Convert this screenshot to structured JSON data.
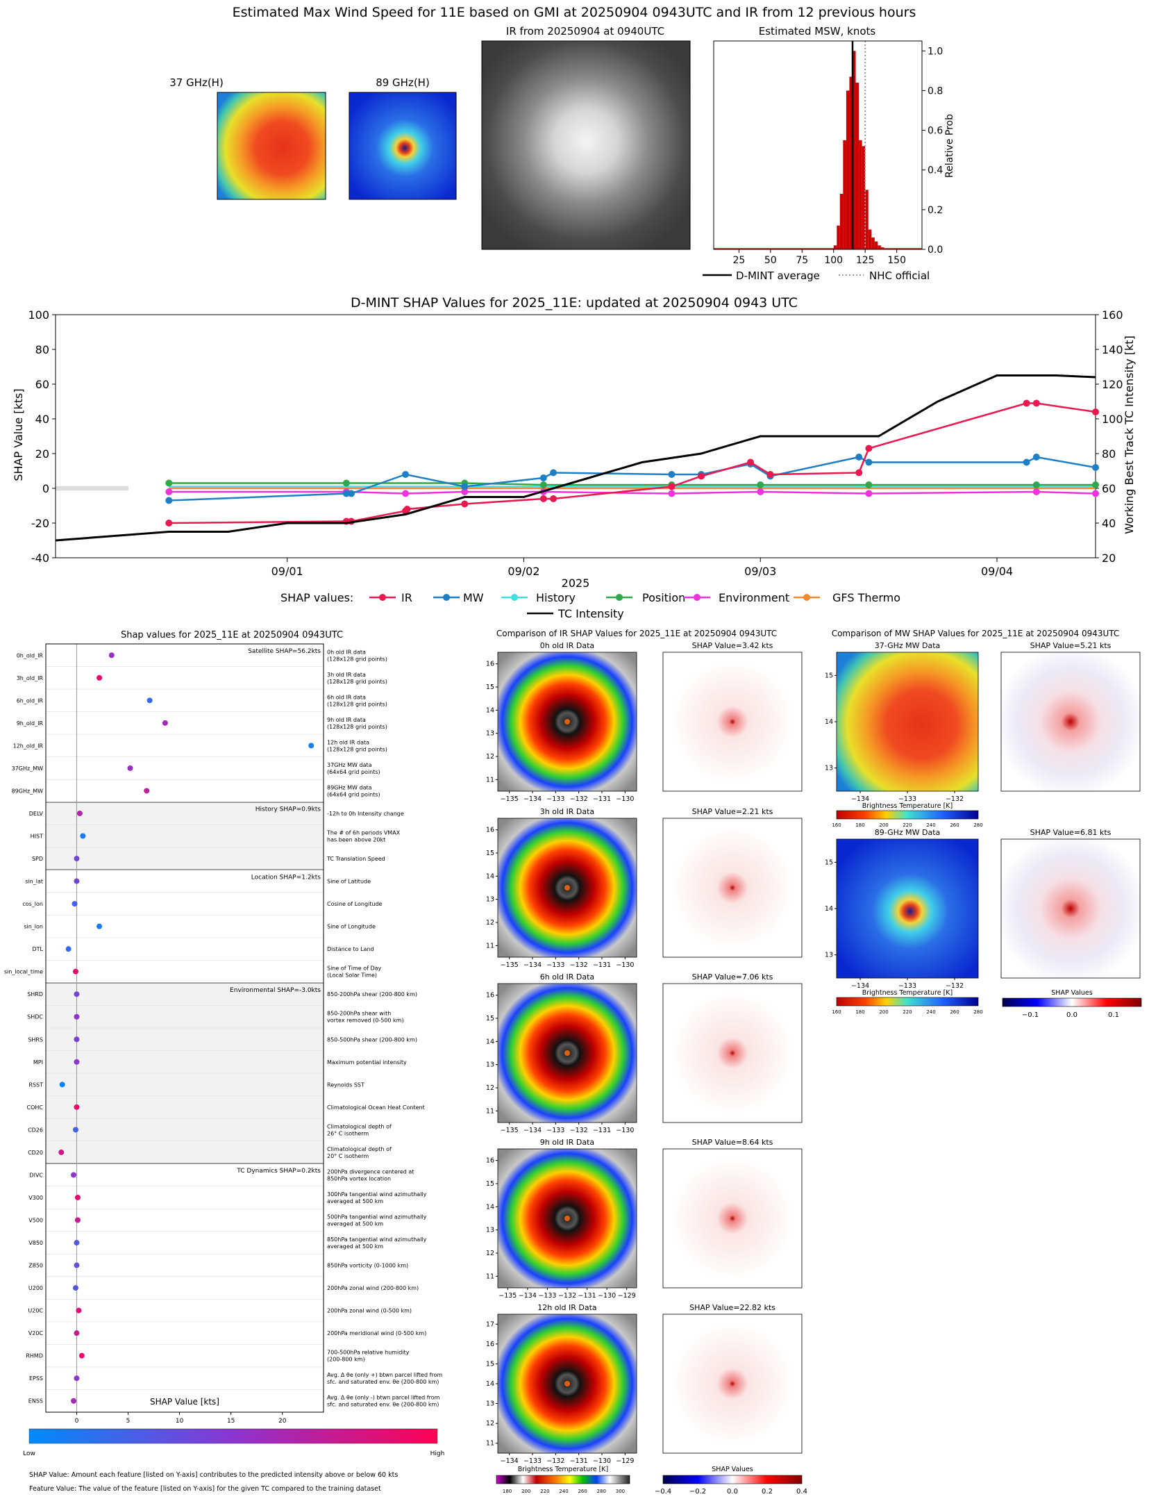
{
  "main_title": "Estimated Max Wind Speed for 11E based on GMI at 20250904 0943UTC and IR from 12 previous hours",
  "top": {
    "mw37_title": "37 GHz(H)",
    "mw89_title": "89 GHz(H)",
    "ir_title": "IR from 20250904 at 0940UTC",
    "msw_title": "Estimated MSW, knots",
    "msw_ylabel": "Relative Prob",
    "legend_dmint": "D-MINT average",
    "legend_nhc": "NHC official"
  },
  "shap_ts": {
    "title": "D-MINT SHAP Values for 2025_11E: updated at 20250904 0943 UTC",
    "ylabel_left": "SHAP Value [kts]",
    "ylabel_right": "Working Best Track TC Intensity [kt]",
    "xlabel": "2025",
    "legend_prefix": "SHAP values:",
    "legend_tc": "TC Intensity"
  },
  "feat": {
    "title": "Shap values for 2025_11E at 20250904 0943UTC",
    "xlabel": "SHAP Value [kts]",
    "cbar_low": "Low",
    "cbar_high": "High",
    "footnote1": "SHAP Value: Amount each feature [listed on Y-axis] contributes to the predicted intensity above or below 60 kts",
    "footnote2": "Feature Value: The value of the feature [listed on Y-axis] for the given TC compared to the training dataset"
  },
  "ir_cmp": {
    "title": "Comparison of IR SHAP Values for 2025_11E at 20250904 0943UTC",
    "panels": [
      {
        "ir": "0h old IR Data",
        "shap": "SHAP Value=3.42 kts"
      },
      {
        "ir": "3h old IR Data",
        "shap": "SHAP Value=2.21 kts"
      },
      {
        "ir": "6h old IR Data",
        "shap": "SHAP Value=7.06 kts"
      },
      {
        "ir": "9h old IR Data",
        "shap": "SHAP Value=8.64 kts"
      },
      {
        "ir": "12h old IR Data",
        "shap": "SHAP Value=22.82 kts"
      }
    ],
    "cbar_bt_label": "Brightness Temperature [K]",
    "cbar_shap_label": "SHAP Values"
  },
  "mw_cmp": {
    "title": "Comparison of MW SHAP Values for 2025_11E at 20250904 0943UTC",
    "panels": [
      {
        "mw": "37-GHz MW Data",
        "shap": "SHAP Value=5.21 kts"
      },
      {
        "mw": "89-GHz MW Data",
        "shap": "SHAP Value=6.81 kts"
      }
    ],
    "cbar_bt_label": "Brightness Temperature [K]",
    "cbar_shap_label": "SHAP Values"
  },
  "colors": {
    "ir": "#e8194f",
    "mw": "#1f7fc4",
    "history": "#3ee0e0",
    "position": "#2ea84a",
    "environment": "#ee33dd",
    "gfs": "#ef8a2e",
    "tc": "#000000",
    "hist_bar": "#cc0000"
  },
  "chart_data": [
    {
      "type": "bar",
      "title": "Estimated MSW, knots",
      "ylabel": "Relative Prob",
      "xlim": [
        5,
        170
      ],
      "ylim": [
        0,
        1.05
      ],
      "xticks": [
        25,
        50,
        75,
        100,
        125,
        150
      ],
      "yticks": [
        0.0,
        0.2,
        0.4,
        0.6,
        0.8,
        1.0
      ],
      "bin_width": 2.5,
      "bins": [
        100,
        102.5,
        105,
        107.5,
        110,
        112.5,
        115,
        117.5,
        120,
        122.5,
        125,
        127.5,
        130,
        132.5,
        135,
        137.5
      ],
      "values": [
        0.02,
        0.12,
        0.28,
        0.55,
        0.8,
        0.87,
        1.0,
        0.84,
        0.55,
        0.52,
        0.3,
        0.1,
        0.06,
        0.04,
        0.02,
        0.01
      ],
      "vlines": [
        {
          "name": "D-MINT average",
          "x": 115,
          "style": "solid"
        },
        {
          "name": "NHC official",
          "x": 125,
          "style": "dotted"
        }
      ]
    },
    {
      "type": "line",
      "title": "D-MINT SHAP Values for 2025_11E: updated at 20250904 0943 UTC",
      "xlabel": "2025",
      "ylabel": "SHAP Value [kts]",
      "y2label": "Working Best Track TC Intensity [kt]",
      "ylim": [
        -40,
        100
      ],
      "y2lim": [
        20,
        160
      ],
      "xlim_days": [
        "08/31 00:30",
        "09/04 10:00"
      ],
      "xticks": [
        "09/01",
        "09/02",
        "09/03",
        "09/04"
      ],
      "yticks": [
        -40,
        -20,
        0,
        20,
        40,
        60,
        80,
        100
      ],
      "y2ticks": [
        20,
        40,
        60,
        80,
        100,
        120,
        140,
        160
      ],
      "series": [
        {
          "name": "IR",
          "x": [
            "08/31 12:00",
            "09/01 06:00",
            "09/01 06:30",
            "09/01 12:00",
            "09/01 12:10",
            "09/01 18:00",
            "09/02 02:00",
            "09/02 03:00",
            "09/02 15:00",
            "09/02 18:00",
            "09/02 23:00",
            "09/03 01:00",
            "09/03 10:00",
            "09/03 11:00",
            "09/04 03:00",
            "09/04 04:00",
            "09/04 10:00"
          ],
          "y": [
            -20,
            -19,
            -19,
            -13,
            -12,
            -9,
            -6,
            -6,
            1,
            7,
            15,
            8,
            9,
            23,
            49,
            49,
            44
          ]
        },
        {
          "name": "MW",
          "x": [
            "08/31 12:00",
            "09/01 06:00",
            "09/01 06:30",
            "09/01 12:00",
            "09/01 18:00",
            "09/02 02:00",
            "09/02 03:00",
            "09/02 15:00",
            "09/02 18:00",
            "09/02 23:00",
            "09/03 01:00",
            "09/03 10:00",
            "09/03 11:00",
            "09/04 03:00",
            "09/04 04:00",
            "09/04 10:00"
          ],
          "y": [
            -7,
            -3,
            -3,
            8,
            1,
            6,
            9,
            8,
            8,
            14,
            7,
            18,
            15,
            15,
            18,
            12
          ]
        },
        {
          "name": "History",
          "x": [
            "08/31 12:00",
            "09/04 10:00"
          ],
          "y": [
            1,
            1
          ]
        },
        {
          "name": "Position",
          "x": [
            "08/31 12:00",
            "09/01 06:00",
            "09/01 18:00",
            "09/02 02:00",
            "09/02 15:00",
            "09/03 00:00",
            "09/03 11:00",
            "09/04 04:00",
            "09/04 10:00"
          ],
          "y": [
            3,
            3,
            3,
            2,
            2,
            2,
            2,
            2,
            2
          ]
        },
        {
          "name": "Environment",
          "x": [
            "08/31 12:00",
            "09/01 06:00",
            "09/01 12:00",
            "09/01 18:00",
            "09/02 02:00",
            "09/02 15:00",
            "09/03 00:00",
            "09/03 11:00",
            "09/04 04:00",
            "09/04 10:00"
          ],
          "y": [
            -2,
            -2,
            -3,
            -2,
            -2,
            -3,
            -2,
            -3,
            -2,
            -3
          ]
        },
        {
          "name": "GFS Thermo",
          "x": [
            "08/31 12:00",
            "09/04 10:00"
          ],
          "y": [
            0,
            0
          ]
        },
        {
          "name": "TC Intensity",
          "axis": "right",
          "x": [
            "08/31 00:30",
            "08/31 12:00",
            "08/31 18:00",
            "09/01 00:00",
            "09/01 06:00",
            "09/01 12:00",
            "09/01 18:00",
            "09/02 00:00",
            "09/02 06:00",
            "09/02 12:00",
            "09/02 18:00",
            "09/03 00:00",
            "09/03 06:00",
            "09/03 12:00",
            "09/03 18:00",
            "09/04 00:00",
            "09/04 06:00",
            "09/04 10:00"
          ],
          "y": [
            30,
            35,
            35,
            40,
            40,
            45,
            55,
            55,
            65,
            75,
            80,
            90,
            90,
            90,
            110,
            125,
            125,
            124
          ]
        }
      ]
    },
    {
      "type": "scatter",
      "title": "Shap values for 2025_11E at 20250904 0943UTC",
      "xlabel": "SHAP Value [kts]",
      "xlim": [
        -3,
        24
      ],
      "xticks": [
        0,
        5,
        10,
        15,
        20
      ],
      "groups": [
        {
          "label": "Satellite SHAP=56.2kts",
          "shaded": false,
          "features": [
            {
              "name": "0h_old_IR",
              "desc": "0h old IR data\n(128x128 grid points)",
              "shap": 3.4,
              "val": 0.55
            },
            {
              "name": "3h_old_IR",
              "desc": "3h old IR data\n(128x128 grid points)",
              "shap": 2.2,
              "val": 0.9
            },
            {
              "name": "6h_old_IR",
              "desc": "6h old IR data\n(128x128 grid points)",
              "shap": 7.1,
              "val": 0.2
            },
            {
              "name": "9h_old_IR",
              "desc": "9h old IR data\n(128x128 grid points)",
              "shap": 8.6,
              "val": 0.6
            },
            {
              "name": "12h_old_IR",
              "desc": "12h old IR data\n(128x128 grid points)",
              "shap": 22.8,
              "val": 0.08
            },
            {
              "name": "37GHz_MW",
              "desc": "37GHz MW data\n(64x64 grid points)",
              "shap": 5.2,
              "val": 0.55
            },
            {
              "name": "89GHz_MW",
              "desc": "89GHz MW data\n(64x64 grid points)",
              "shap": 6.8,
              "val": 0.7
            }
          ]
        },
        {
          "label": "History SHAP=0.9kts",
          "shaded": true,
          "features": [
            {
              "name": "DELV",
              "desc": "-12h to 0h Intensity change",
              "shap": 0.3,
              "val": 0.65
            },
            {
              "name": "HIST",
              "desc": "The # of 6h periods VMAX\nhas been above 20kt",
              "shap": 0.6,
              "val": 0.1
            },
            {
              "name": "SPD",
              "desc": "TC Translation Speed",
              "shap": 0.0,
              "val": 0.4
            }
          ]
        },
        {
          "label": "Location SHAP=1.2kts",
          "shaded": false,
          "features": [
            {
              "name": "sin_lat",
              "desc": "Sine of Latitude",
              "shap": 0.0,
              "val": 0.4
            },
            {
              "name": "cos_lon",
              "desc": "Cosine of Longitude",
              "shap": -0.2,
              "val": 0.25
            },
            {
              "name": "sin_lon",
              "desc": "Sine of Longitude",
              "shap": 2.2,
              "val": 0.1
            },
            {
              "name": "DTL",
              "desc": "Distance to Land",
              "shap": -0.8,
              "val": 0.2
            },
            {
              "name": "sin_local_time",
              "desc": "Sine of Time of Day\n(Local Solar Time)",
              "shap": -0.1,
              "val": 0.9
            }
          ]
        },
        {
          "label": "Environmental SHAP=-3.0kts",
          "shaded": true,
          "features": [
            {
              "name": "SHRD",
              "desc": "850-200hPa shear (200-800 km)",
              "shap": 0.0,
              "val": 0.4
            },
            {
              "name": "SHDC",
              "desc": "850-200hPa shear with\nvortex removed (0-500 km)",
              "shap": 0.0,
              "val": 0.5
            },
            {
              "name": "SHRS",
              "desc": "850-500hPa shear (200-800 km)",
              "shap": 0.0,
              "val": 0.45
            },
            {
              "name": "MPI",
              "desc": "Maximum potential intensity",
              "shap": 0.0,
              "val": 0.5
            },
            {
              "name": "RSST",
              "desc": "Reynolds SST",
              "shap": -1.4,
              "val": 0.05
            },
            {
              "name": "COHC",
              "desc": "Climatological Ocean Heat Content",
              "shap": 0.0,
              "val": 0.9
            },
            {
              "name": "CD26",
              "desc": "Climatological depth of\n26° C isotherm",
              "shap": -0.1,
              "val": 0.25
            },
            {
              "name": "CD20",
              "desc": "Climatological depth of\n20° C isotherm",
              "shap": -1.5,
              "val": 0.8
            }
          ]
        },
        {
          "label": "TC Dynamics SHAP=0.2kts",
          "shaded": false,
          "features": [
            {
              "name": "DIVC",
              "desc": "200hPa divergence centered at\n850hPa vortex location",
              "shap": -0.3,
              "val": 0.5
            },
            {
              "name": "V300",
              "desc": "300hPa tangential wind azimuthally\naveraged at 500 km",
              "shap": 0.1,
              "val": 0.9
            },
            {
              "name": "V500",
              "desc": "500hPa tangential wind azimuthally\naveraged at 500 km",
              "shap": 0.1,
              "val": 0.75
            },
            {
              "name": "V850",
              "desc": "850hPa tangential wind azimuthally\naveraged at 500 km",
              "shap": 0.0,
              "val": 0.3
            },
            {
              "name": "Z850",
              "desc": "850hPa vorticity (0-1000 km)",
              "shap": 0.0,
              "val": 0.35
            },
            {
              "name": "U200",
              "desc": "200hPa zonal wind (200-800 km)",
              "shap": -0.1,
              "val": 0.3
            },
            {
              "name": "U20C",
              "desc": "200hPa zonal wind (0-500 km)",
              "shap": 0.2,
              "val": 0.85
            },
            {
              "name": "V20C",
              "desc": "200hPa meridional wind (0-500 km)",
              "shap": 0.0,
              "val": 0.75
            },
            {
              "name": "RHMD",
              "desc": "700-500hPa relative humidity\n(200-800 km)",
              "shap": 0.5,
              "val": 0.9
            },
            {
              "name": "EPSS",
              "desc": "Avg. Δ θe (only +) btwn parcel lifted from\nsfc. and saturated env. θe (200-800 km)",
              "shap": 0.0,
              "val": 0.5
            },
            {
              "name": "ENSS",
              "desc": "Avg. Δ θe (only -) btwn parcel lifted from\nsfc. and saturated env. θe (200-800 km)",
              "shap": -0.3,
              "val": 0.6
            }
          ]
        }
      ]
    }
  ],
  "ticks": {
    "ir_x_a": [
      "−135",
      "−134",
      "−133",
      "−132",
      "−131",
      "−130"
    ],
    "ir_x_b": [
      "−135",
      "−134",
      "−133",
      "−132",
      "−131",
      "−130",
      "−129"
    ],
    "ir_x_c": [
      "−134",
      "−133",
      "−132",
      "−131",
      "−130",
      "−129"
    ],
    "ir_y_a": [
      "16",
      "15",
      "14",
      "13",
      "12",
      "11"
    ],
    "ir_y_b": [
      "17",
      "16",
      "15",
      "14",
      "13",
      "12",
      "11"
    ],
    "mw_x": [
      "−134",
      "−133",
      "−132"
    ],
    "mw_y": [
      "15",
      "14",
      "13"
    ],
    "bt_ir": [
      "180",
      "200",
      "220",
      "240",
      "260",
      "280",
      "300"
    ],
    "bt_mw": [
      "160",
      "180",
      "200",
      "220",
      "240",
      "260",
      "280"
    ],
    "shap_ir": [
      "−0.4",
      "−0.2",
      "0.0",
      "0.2",
      "0.4"
    ],
    "shap_mw": [
      "−0.1",
      "0.0",
      "0.1"
    ]
  }
}
